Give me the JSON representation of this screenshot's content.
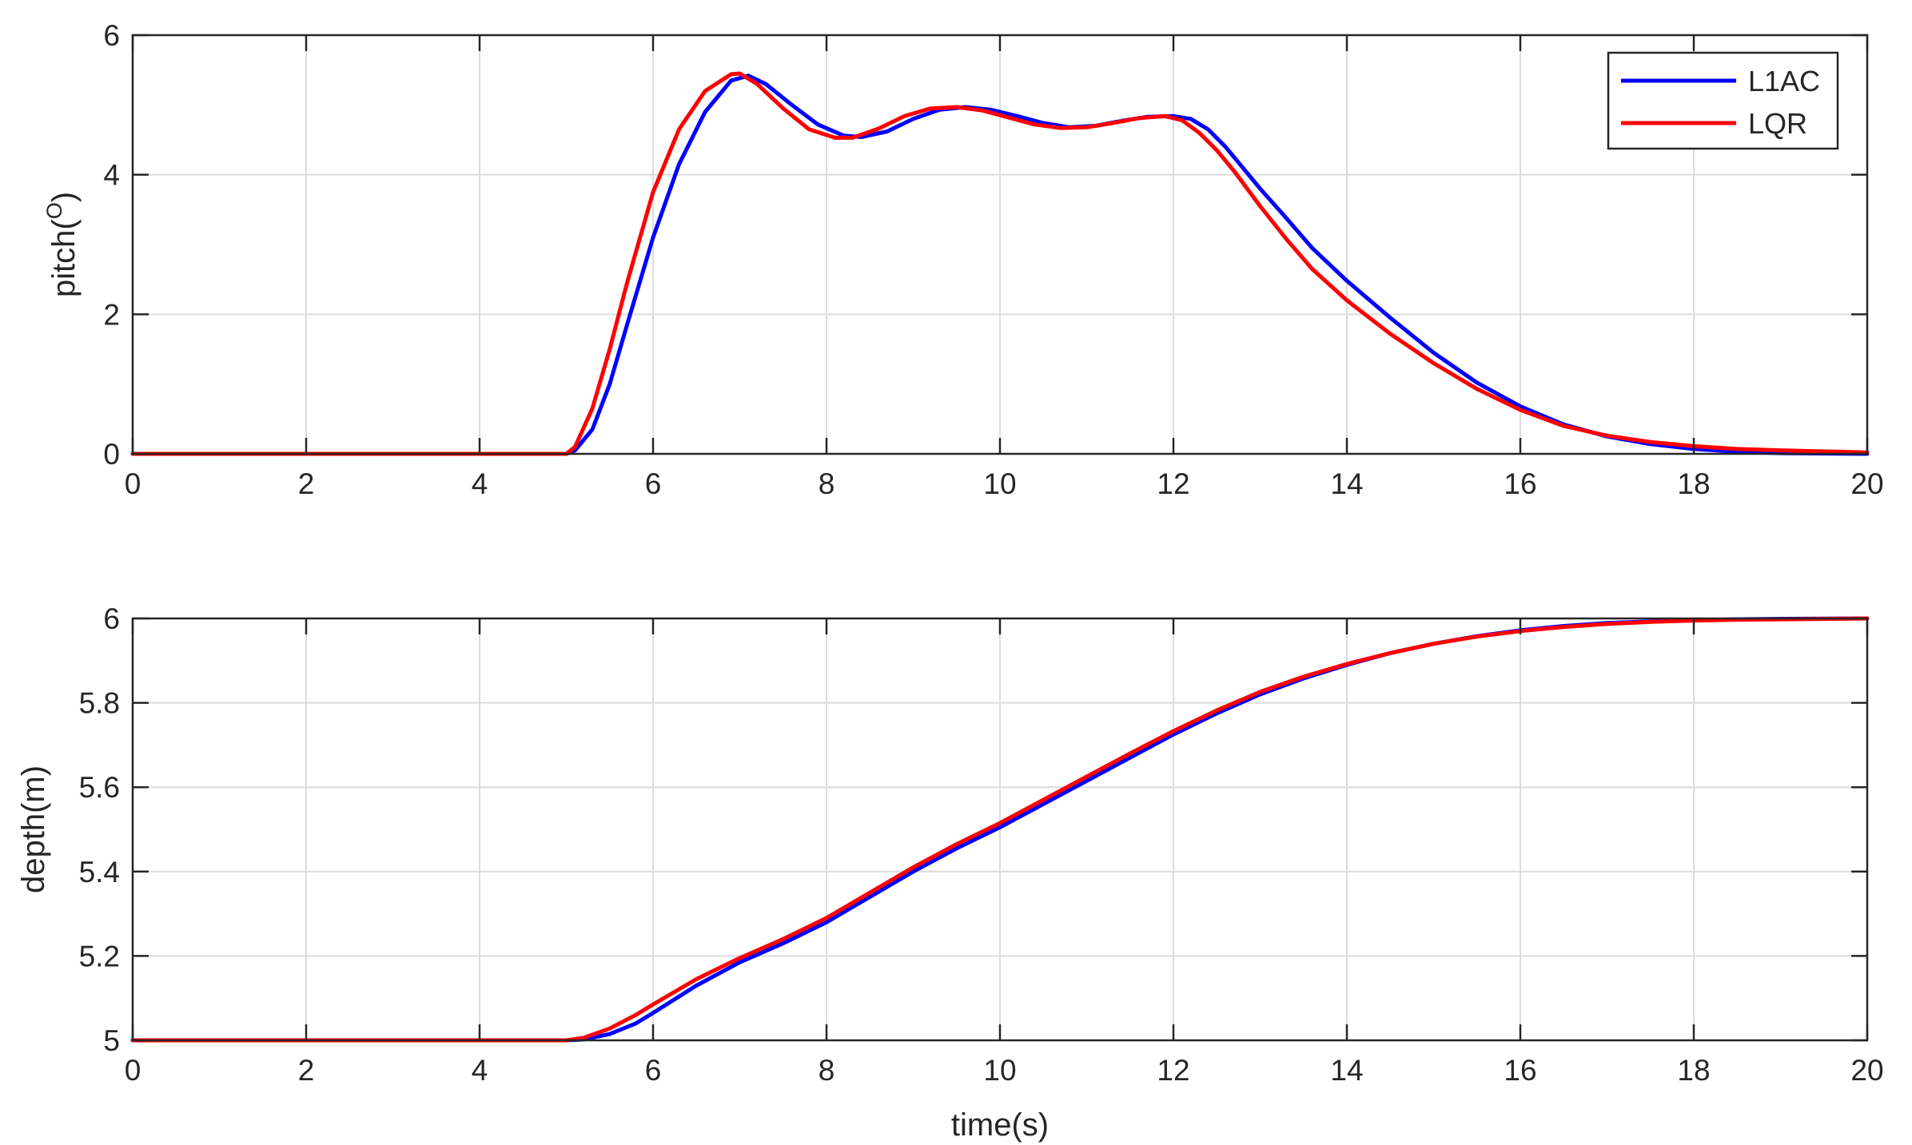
{
  "chart_data": [
    {
      "type": "line",
      "xlabel": "",
      "ylabel_base": "pitch(",
      "ylabel_sup": "O",
      "ylabel_tail": ")",
      "xlim": [
        0,
        20
      ],
      "ylim": [
        0,
        6
      ],
      "xticks": [
        0,
        2,
        4,
        6,
        8,
        10,
        12,
        14,
        16,
        18,
        20
      ],
      "yticks": [
        0,
        2,
        4,
        6
      ],
      "grid": true,
      "legend_position": "top-right",
      "series": [
        {
          "name": "L1AC",
          "color": "#0000ff",
          "x": [
            0,
            5.0,
            5.1,
            5.3,
            5.5,
            5.7,
            6.0,
            6.3,
            6.6,
            6.9,
            7.1,
            7.3,
            7.6,
            7.9,
            8.2,
            8.4,
            8.7,
            9.0,
            9.3,
            9.6,
            9.9,
            10.2,
            10.5,
            10.8,
            11.1,
            11.4,
            11.7,
            12.0,
            12.2,
            12.4,
            12.6,
            12.8,
            13.0,
            13.3,
            13.6,
            14.0,
            14.5,
            15.0,
            15.5,
            16.0,
            16.5,
            17.0,
            17.5,
            18.0,
            18.5,
            19.0,
            20.0
          ],
          "y": [
            0,
            0,
            0.05,
            0.35,
            1.0,
            1.85,
            3.1,
            4.15,
            4.9,
            5.35,
            5.42,
            5.3,
            5.0,
            4.72,
            4.56,
            4.54,
            4.62,
            4.8,
            4.93,
            4.97,
            4.93,
            4.84,
            4.74,
            4.68,
            4.7,
            4.77,
            4.83,
            4.84,
            4.8,
            4.65,
            4.4,
            4.1,
            3.8,
            3.38,
            2.95,
            2.48,
            1.95,
            1.45,
            1.02,
            0.68,
            0.42,
            0.25,
            0.14,
            0.07,
            0.03,
            0.01,
            0
          ]
        },
        {
          "name": "LQR",
          "color": "#ff0000",
          "x": [
            0,
            5.0,
            5.1,
            5.3,
            5.5,
            5.7,
            6.0,
            6.3,
            6.6,
            6.9,
            7.0,
            7.2,
            7.5,
            7.8,
            8.1,
            8.3,
            8.6,
            8.9,
            9.2,
            9.5,
            9.8,
            10.1,
            10.4,
            10.7,
            11.0,
            11.3,
            11.6,
            11.9,
            12.1,
            12.3,
            12.5,
            12.7,
            13.0,
            13.3,
            13.6,
            14.0,
            14.5,
            15.0,
            15.5,
            16.0,
            16.5,
            17.0,
            17.5,
            18.0,
            18.5,
            19.0,
            20.0
          ],
          "y": [
            0,
            0,
            0.1,
            0.65,
            1.5,
            2.45,
            3.75,
            4.65,
            5.2,
            5.44,
            5.45,
            5.3,
            4.95,
            4.65,
            4.53,
            4.53,
            4.66,
            4.84,
            4.95,
            4.97,
            4.92,
            4.82,
            4.72,
            4.67,
            4.68,
            4.74,
            4.81,
            4.84,
            4.78,
            4.6,
            4.35,
            4.05,
            3.55,
            3.08,
            2.65,
            2.2,
            1.72,
            1.3,
            0.93,
            0.63,
            0.4,
            0.26,
            0.17,
            0.11,
            0.07,
            0.05,
            0.02
          ]
        }
      ]
    },
    {
      "type": "line",
      "xlabel": "time(s)",
      "ylabel": "depth(m)",
      "xlim": [
        0,
        20
      ],
      "ylim": [
        5,
        6
      ],
      "xticks": [
        0,
        2,
        4,
        6,
        8,
        10,
        12,
        14,
        16,
        18,
        20
      ],
      "yticks": [
        5,
        5.2,
        5.4,
        5.6,
        5.8,
        6
      ],
      "grid": true,
      "series": [
        {
          "name": "L1AC",
          "color": "#0000ff",
          "x": [
            0,
            5.0,
            5.2,
            5.5,
            5.8,
            6.0,
            6.5,
            7.0,
            7.5,
            8.0,
            8.5,
            9.0,
            9.5,
            10.0,
            10.5,
            11.0,
            11.5,
            12.0,
            12.5,
            13.0,
            13.5,
            14.0,
            14.5,
            15.0,
            15.5,
            16.0,
            16.5,
            17.0,
            17.5,
            18.0,
            18.5,
            19.0,
            20.0
          ],
          "y": [
            5.0,
            5.0,
            5.002,
            5.015,
            5.04,
            5.065,
            5.13,
            5.185,
            5.23,
            5.28,
            5.34,
            5.4,
            5.455,
            5.505,
            5.56,
            5.615,
            5.67,
            5.725,
            5.775,
            5.82,
            5.858,
            5.89,
            5.918,
            5.94,
            5.958,
            5.972,
            5.982,
            5.989,
            5.993,
            5.996,
            5.998,
            5.999,
            6.0
          ]
        },
        {
          "name": "LQR",
          "color": "#ff0000",
          "x": [
            0,
            5.0,
            5.2,
            5.5,
            5.8,
            6.0,
            6.5,
            7.0,
            7.5,
            8.0,
            8.5,
            9.0,
            9.5,
            10.0,
            10.5,
            11.0,
            11.5,
            12.0,
            12.5,
            13.0,
            13.5,
            14.0,
            14.5,
            15.0,
            15.5,
            16.0,
            16.5,
            17.0,
            17.5,
            18.0,
            18.5,
            19.0,
            20.0
          ],
          "y": [
            5.0,
            5.0,
            5.006,
            5.028,
            5.06,
            5.085,
            5.145,
            5.195,
            5.24,
            5.29,
            5.35,
            5.41,
            5.465,
            5.515,
            5.57,
            5.625,
            5.68,
            5.733,
            5.782,
            5.826,
            5.862,
            5.892,
            5.918,
            5.94,
            5.957,
            5.97,
            5.98,
            5.987,
            5.992,
            5.995,
            5.997,
            5.998,
            6.0
          ]
        }
      ]
    }
  ]
}
